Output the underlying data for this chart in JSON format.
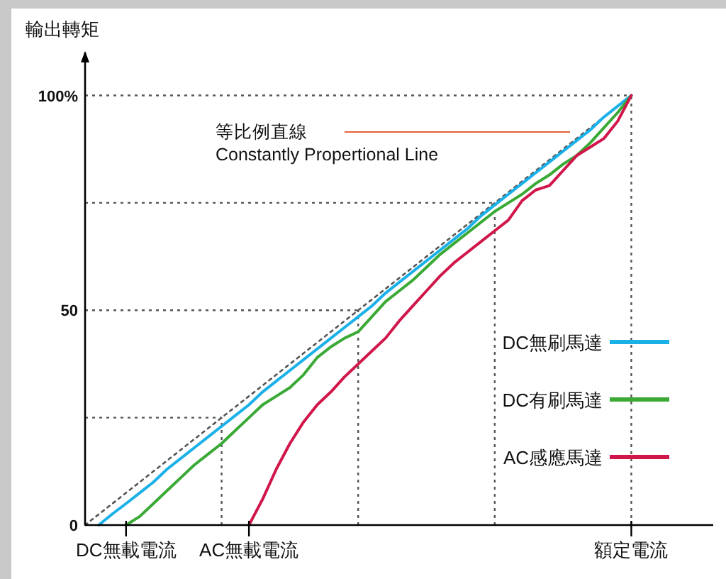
{
  "chart_data": {
    "type": "line",
    "ylabel": "輸出轉矩",
    "categories": [
      null,
      null,
      null,
      "DC無載電流",
      null,
      null,
      null,
      null,
      null,
      null,
      null,
      null,
      "AC無載電流",
      null,
      null,
      null,
      null,
      null,
      null,
      null,
      null,
      null,
      null,
      null,
      null,
      null,
      null,
      null,
      null,
      null,
      null,
      null,
      null,
      null,
      null,
      null,
      null,
      null,
      null,
      null,
      "額定電流",
      null,
      null,
      null,
      null,
      null,
      null
    ],
    "ylim": [
      0,
      110
    ],
    "yticks": [
      0,
      50,
      {
        "value": 100,
        "label": "100%"
      }
    ],
    "series": [
      {
        "color": "#555555",
        "line_style": "dotted",
        "values": [
          0,
          2.5,
          5,
          7.5,
          10,
          12.5,
          15,
          17.5,
          20,
          22.5,
          25,
          27.5,
          30,
          32.5,
          35,
          37.5,
          40,
          42.5,
          45,
          47.5,
          50,
          52.5,
          55,
          57.5,
          60,
          62.5,
          65,
          67.5,
          70,
          72.5,
          75,
          77.5,
          80,
          82.5,
          85,
          87.5,
          90,
          92.5,
          95,
          97.5,
          100,
          null,
          null,
          null,
          null,
          null,
          null
        ]
      },
      {
        "name": "DC無刷馬達",
        "color": "#1ab0e8",
        "values": [
          null,
          0,
          2.6,
          5,
          7.5,
          10,
          13,
          15.5,
          18,
          20.5,
          23,
          25.5,
          28,
          31,
          33.5,
          36,
          38.5,
          41,
          43.5,
          46,
          48.5,
          51,
          54,
          56.5,
          59,
          61.5,
          64,
          66.5,
          69,
          72,
          74.5,
          77,
          79.5,
          82,
          84.5,
          87,
          89.5,
          92,
          95,
          97.5,
          100,
          null,
          null,
          null,
          null,
          null,
          null
        ]
      },
      {
        "name": "DC有刷馬達",
        "color": "#3aa935",
        "values": [
          null,
          null,
          null,
          0,
          2,
          5,
          8,
          11,
          14,
          16.5,
          19,
          22,
          25,
          28,
          30,
          32,
          35,
          39,
          41.5,
          43.5,
          45,
          48.5,
          52,
          54.5,
          57,
          60,
          63,
          65.5,
          68,
          70.5,
          73,
          75,
          77,
          79.5,
          81.5,
          84,
          86,
          89,
          92.5,
          96,
          100,
          null,
          null,
          null,
          null,
          null,
          null
        ]
      },
      {
        "name": "AC感應馬達",
        "color": "#d0164a",
        "values": [
          null,
          null,
          null,
          null,
          null,
          null,
          null,
          null,
          null,
          null,
          null,
          null,
          0,
          6,
          13,
          19,
          24,
          28,
          31,
          34.5,
          37.5,
          40.5,
          43.5,
          47.5,
          51,
          54.5,
          58,
          61,
          63.5,
          66,
          68.5,
          71,
          75.5,
          78,
          79,
          82.5,
          86,
          88,
          90,
          94,
          100,
          null,
          null,
          null,
          null,
          null,
          null
        ]
      }
    ],
    "ref_lines": [
      {
        "axis": "y",
        "value": 25,
        "label": null,
        "line_style": "dotted"
      },
      {
        "axis": "y",
        "value": 50,
        "label": null,
        "line_style": "dotted"
      },
      {
        "axis": "y",
        "value": 75,
        "label": null,
        "line_style": "dotted"
      },
      {
        "axis": "y",
        "value": 100,
        "label": null,
        "line_style": "dotted"
      }
    ],
    "annotations": [
      "等比例直線",
      "Constantly Propertional Line"
    ],
    "legend": "bottom right"
  }
}
